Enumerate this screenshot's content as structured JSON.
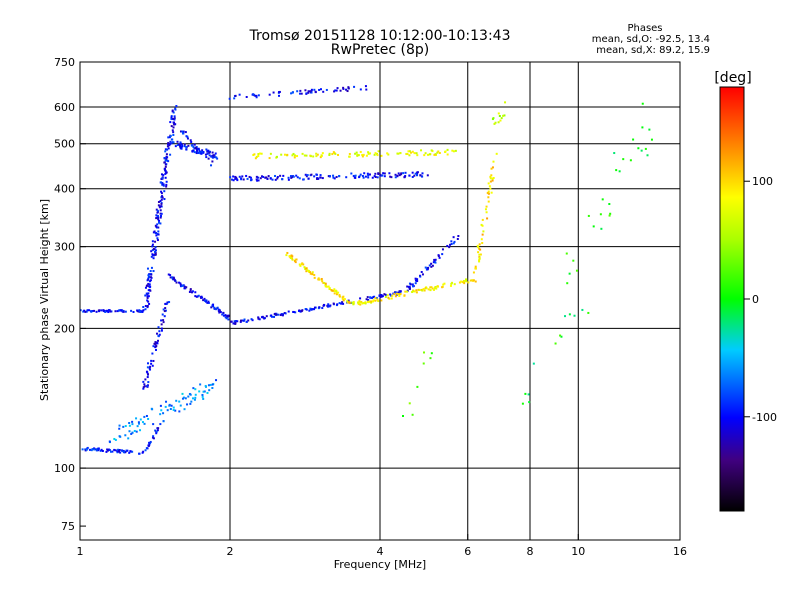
{
  "title_line1": "Tromsø 20151128  10:12:00-10:13:43",
  "title_line2": "RwPretec (8p)",
  "stats": {
    "heading": "Phases",
    "line1": "mean, sd,O: -92.5, 13.4",
    "line2": "mean, sd,X:  89.2, 15.9"
  },
  "colorbar": {
    "label": "[deg]",
    "ticks": [
      {
        "value": 100,
        "label": "100"
      },
      {
        "value": 0,
        "label": "0"
      },
      {
        "value": -100,
        "label": "-100"
      }
    ],
    "range": [
      -180,
      180
    ]
  },
  "chart_data": {
    "type": "scatter",
    "xlabel": "Frequency [MHz]",
    "ylabel": "Stationary phase Virtual Height [km]",
    "xscale": "log",
    "yscale": "log",
    "xlim": [
      1,
      16
    ],
    "ylim": [
      70,
      750
    ],
    "xticks": [
      {
        "value": 1,
        "label": "1"
      },
      {
        "value": 2,
        "label": "2"
      },
      {
        "value": 4,
        "label": "4"
      },
      {
        "value": 6,
        "label": "6"
      },
      {
        "value": 8,
        "label": "8"
      },
      {
        "value": 10,
        "label": "10"
      },
      {
        "value": 16,
        "label": "16"
      }
    ],
    "yticks": [
      {
        "value": 75,
        "label": "75"
      },
      {
        "value": 100,
        "label": "100"
      },
      {
        "value": 200,
        "label": "200"
      },
      {
        "value": 300,
        "label": "300"
      },
      {
        "value": 400,
        "label": "400"
      },
      {
        "value": 500,
        "label": "500"
      },
      {
        "value": 600,
        "label": "600"
      },
      {
        "value": 750,
        "label": "750"
      }
    ],
    "xgrid": [
      2,
      4,
      6,
      8,
      10
    ],
    "ygrid": [
      100,
      200,
      300,
      400,
      500,
      600
    ],
    "color_variable": "phase [deg]",
    "clusters": [
      {
        "freq": [
          1.0,
          1.35
        ],
        "height": [
          110,
          108
        ],
        "phase": -95,
        "n": 60,
        "spread": 0.015
      },
      {
        "freq": [
          1.35,
          1.45
        ],
        "height": [
          108,
          125
        ],
        "phase": -95,
        "n": 20,
        "spread": 0.02
      },
      {
        "freq": [
          1.15,
          1.85
        ],
        "height": [
          115,
          150
        ],
        "phase": -60,
        "n": 90,
        "spread": 0.08
      },
      {
        "freq": [
          1.35,
          1.5
        ],
        "height": [
          150,
          230
        ],
        "phase": -100,
        "n": 60,
        "spread": 0.04
      },
      {
        "freq": [
          1.0,
          1.35
        ],
        "height": [
          218,
          218
        ],
        "phase": -100,
        "n": 55,
        "spread": 0.01
      },
      {
        "freq": [
          1.35,
          1.55
        ],
        "height": [
          218,
          600
        ],
        "phase": -100,
        "n": 200,
        "spread": 0.05
      },
      {
        "freq": [
          1.55,
          1.9
        ],
        "height": [
          500,
          470
        ],
        "phase": -100,
        "n": 70,
        "spread": 0.03
      },
      {
        "freq": [
          1.5,
          2.0
        ],
        "height": [
          260,
          210
        ],
        "phase": -100,
        "n": 80,
        "spread": 0.02
      },
      {
        "freq": [
          2.0,
          4.5
        ],
        "height": [
          205,
          240
        ],
        "phase": -100,
        "n": 130,
        "spread": 0.015
      },
      {
        "freq": [
          4.5,
          5.8
        ],
        "height": [
          240,
          320
        ],
        "phase": -100,
        "n": 50,
        "spread": 0.03
      },
      {
        "freq": [
          2.6,
          3.5
        ],
        "height": [
          290,
          225
        ],
        "phase": 95,
        "n": 80,
        "spread": 0.02
      },
      {
        "freq": [
          3.5,
          6.2
        ],
        "height": [
          225,
          255
        ],
        "phase": 90,
        "n": 100,
        "spread": 0.02
      },
      {
        "freq": [
          6.2,
          6.8
        ],
        "height": [
          255,
          470
        ],
        "phase": 100,
        "n": 50,
        "spread": 0.04
      },
      {
        "freq": [
          2.0,
          5.0
        ],
        "height": [
          420,
          430
        ],
        "phase": -100,
        "n": 150,
        "spread": 0.025
      },
      {
        "freq": [
          2.2,
          5.8
        ],
        "height": [
          470,
          480
        ],
        "phase": 80,
        "n": 100,
        "spread": 0.025
      },
      {
        "freq": [
          2.0,
          3.8
        ],
        "height": [
          630,
          660
        ],
        "phase": -100,
        "n": 60,
        "spread": 0.02
      },
      {
        "freq": [
          1.6,
          1.85
        ],
        "height": [
          530,
          450
        ],
        "phase": -100,
        "n": 25,
        "spread": 0.03
      },
      {
        "freq": [
          6.8,
          7.2
        ],
        "height": [
          560,
          600
        ],
        "phase": 60,
        "n": 12,
        "spread": 0.05
      },
      {
        "freq": [
          8.0,
          14.0
        ],
        "height": [
          150,
          600
        ],
        "phase": 0,
        "n": 40,
        "spread": 0.3
      },
      {
        "freq": [
          4.5,
          5.0
        ],
        "height": [
          130,
          180
        ],
        "phase": 20,
        "n": 8,
        "spread": 0.1
      }
    ]
  }
}
